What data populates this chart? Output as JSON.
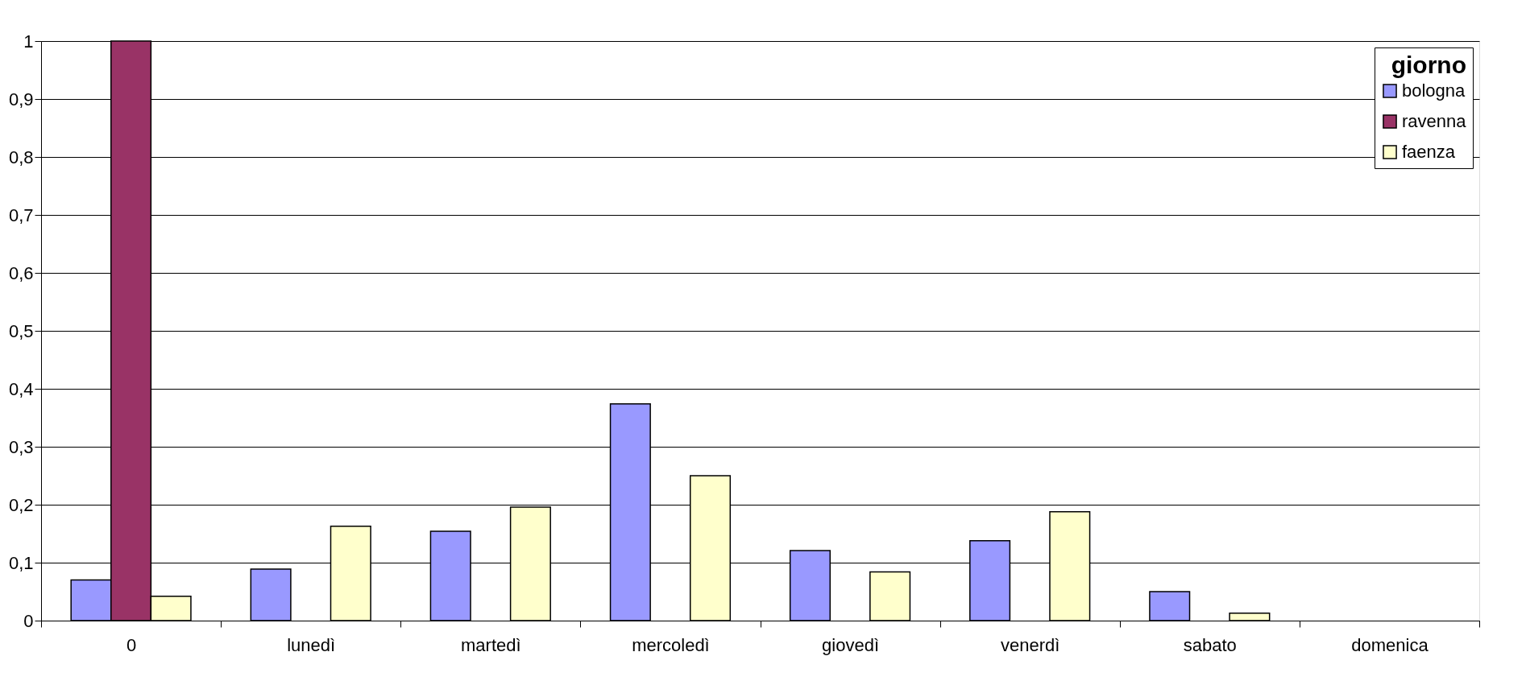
{
  "chart_data": {
    "type": "bar",
    "legend_title": "giorno",
    "legend": "top right",
    "grid": "y",
    "categories": [
      "0",
      "lunedì",
      "martedì",
      "mercoledì",
      "giovedì",
      "venerdì",
      "sabato",
      "domenica"
    ],
    "series": [
      {
        "name": "bologna",
        "color": "#9999ff",
        "values": [
          0.07,
          0.089,
          0.154,
          0.374,
          0.121,
          0.138,
          0.05,
          null
        ]
      },
      {
        "name": "ravenna",
        "color": "#993366",
        "values": [
          1.0,
          null,
          null,
          null,
          null,
          null,
          null,
          null
        ]
      },
      {
        "name": "faenza",
        "color": "#ffffcc",
        "values": [
          0.042,
          0.163,
          0.196,
          0.25,
          0.084,
          0.188,
          0.013,
          null
        ]
      }
    ],
    "ylim": [
      0,
      1
    ],
    "yticks": [
      0,
      {
        "value": 0.1,
        "label": "0,1"
      },
      {
        "value": 0.2,
        "label": "0,2"
      },
      {
        "value": 0.3,
        "label": "0,3"
      },
      {
        "value": 0.4,
        "label": "0,4"
      },
      {
        "value": 0.5,
        "label": "0,5"
      },
      {
        "value": 0.6,
        "label": "0,6"
      },
      {
        "value": 0.7,
        "label": "0,7"
      },
      {
        "value": 0.8,
        "label": "0,8"
      },
      {
        "value": 0.9,
        "label": "0,9"
      },
      1
    ]
  }
}
